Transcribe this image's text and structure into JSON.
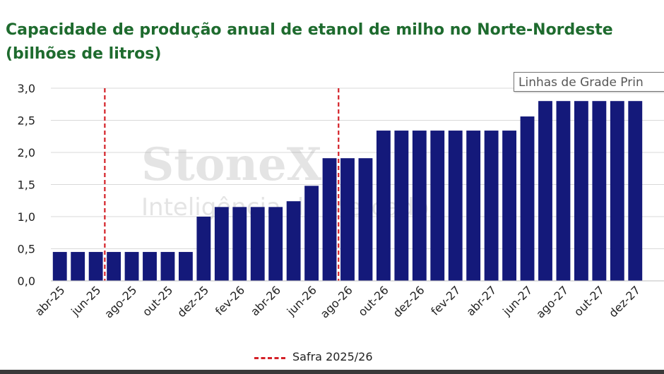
{
  "chart_data": {
    "type": "bar",
    "title_line1": "Capacidade de produção anual de etanol de milho no Norte-Nordeste",
    "title_line2": "(bilhões de litros)",
    "categories": [
      "abr-25",
      "mai-25",
      "jun-25",
      "jul-25",
      "ago-25",
      "set-25",
      "out-25",
      "nov-25",
      "dez-25",
      "jan-26",
      "fev-26",
      "mar-26",
      "abr-26",
      "mai-26",
      "jun-26",
      "jul-26",
      "ago-26",
      "set-26",
      "out-26",
      "nov-26",
      "dez-26",
      "jan-27",
      "fev-27",
      "mar-27",
      "abr-27",
      "mai-27",
      "jun-27",
      "jul-27",
      "ago-27",
      "set-27",
      "out-27",
      "nov-27",
      "dez-27"
    ],
    "tick_labels": [
      "abr-25",
      "jun-25",
      "ago-25",
      "out-25",
      "dez-25",
      "fev-26",
      "abr-26",
      "jun-26",
      "ago-26",
      "out-26",
      "dez-26",
      "fev-27",
      "abr-27",
      "jun-27",
      "ago-27",
      "out-27",
      "dez-27"
    ],
    "values": [
      0.45,
      0.45,
      0.45,
      0.45,
      0.45,
      0.45,
      0.45,
      0.45,
      1.0,
      1.15,
      1.15,
      1.15,
      1.15,
      1.24,
      1.48,
      1.91,
      1.91,
      1.91,
      2.34,
      2.34,
      2.34,
      2.34,
      2.34,
      2.34,
      2.34,
      2.34,
      2.56,
      2.8,
      2.8,
      2.8,
      2.8,
      2.8,
      2.8
    ],
    "ylim": [
      0,
      3.0
    ],
    "yticks": [
      "0,0",
      "0,5",
      "1,0",
      "1,5",
      "2,0",
      "2,5",
      "3,0"
    ],
    "grid": true,
    "bar_color": "#14197a",
    "marker_color": "#d42027",
    "safra_markers": [
      "jun-25/jul-25",
      "jul-26/ago-26"
    ],
    "legend": {
      "label": "Safra 2025/26",
      "position": "bottom"
    },
    "watermark": {
      "line1": "StoneX",
      "line2": "Inteligência de Mercado"
    }
  },
  "tooltip": {
    "text": "Linhas de Grade Prin"
  }
}
